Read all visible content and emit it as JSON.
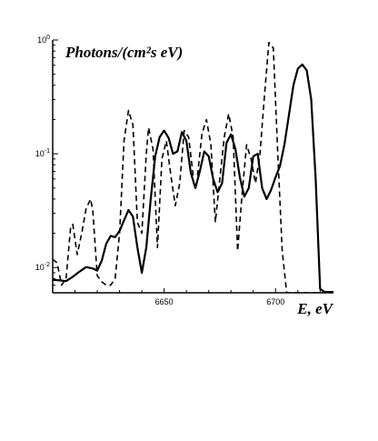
{
  "chart_data": {
    "type": "line",
    "title": "",
    "ylabel": "Photons/(cm²s eV)",
    "xlabel": "E, eV",
    "xlim": [
      6600,
      6726
    ],
    "ylim": [
      0.006,
      1.0
    ],
    "yscale": "log",
    "grid": false,
    "x_ticks": [
      {
        "value": 6650,
        "label": "6650"
      },
      {
        "value": 6700,
        "label": "6700"
      }
    ],
    "y_ticks": [
      {
        "value": 1.0,
        "base": "10",
        "exp": "0"
      },
      {
        "value": 0.1,
        "base": "10",
        "exp": "-1"
      },
      {
        "value": 0.01,
        "base": "10",
        "exp": "-2"
      }
    ],
    "series": [
      {
        "style": "solid",
        "color": "#000000",
        "points": [
          [
            6600,
            0.0078
          ],
          [
            6603,
            0.0077
          ],
          [
            6606,
            0.0076
          ],
          [
            6609,
            0.0083
          ],
          [
            6612,
            0.0092
          ],
          [
            6615,
            0.0101
          ],
          [
            6618,
            0.0098
          ],
          [
            6620,
            0.0094
          ],
          [
            6622,
            0.0115
          ],
          [
            6624,
            0.0162
          ],
          [
            6626,
            0.019
          ],
          [
            6628,
            0.0185
          ],
          [
            6630,
            0.021
          ],
          [
            6632,
            0.026
          ],
          [
            6634,
            0.032
          ],
          [
            6636,
            0.028
          ],
          [
            6638,
            0.015
          ],
          [
            6640,
            0.009
          ],
          [
            6642,
            0.015
          ],
          [
            6644,
            0.04
          ],
          [
            6646,
            0.095
          ],
          [
            6648,
            0.14
          ],
          [
            6650,
            0.16
          ],
          [
            6652,
            0.138
          ],
          [
            6654,
            0.1
          ],
          [
            6656,
            0.105
          ],
          [
            6658,
            0.155
          ],
          [
            6660,
            0.13
          ],
          [
            6662,
            0.068
          ],
          [
            6664,
            0.05
          ],
          [
            6666,
            0.07
          ],
          [
            6668,
            0.105
          ],
          [
            6670,
            0.095
          ],
          [
            6672,
            0.06
          ],
          [
            6674,
            0.046
          ],
          [
            6676,
            0.055
          ],
          [
            6678,
            0.125
          ],
          [
            6680,
            0.148
          ],
          [
            6682,
            0.11
          ],
          [
            6684,
            0.062
          ],
          [
            6686,
            0.042
          ],
          [
            6688,
            0.05
          ],
          [
            6690,
            0.095
          ],
          [
            6692,
            0.1
          ],
          [
            6694,
            0.05
          ],
          [
            6696,
            0.04
          ],
          [
            6698,
            0.048
          ],
          [
            6700,
            0.062
          ],
          [
            6702,
            0.078
          ],
          [
            6704,
            0.12
          ],
          [
            6706,
            0.22
          ],
          [
            6708,
            0.4
          ],
          [
            6710,
            0.56
          ],
          [
            6712,
            0.61
          ],
          [
            6714,
            0.54
          ],
          [
            6716,
            0.3
          ],
          [
            6718,
            0.06
          ],
          [
            6720,
            0.0065
          ],
          [
            6722,
            0.0061
          ],
          [
            6726,
            0.0061
          ]
        ]
      },
      {
        "style": "dashed",
        "color": "#000000",
        "points": [
          [
            6600,
            0.0118
          ],
          [
            6602,
            0.011
          ],
          [
            6604,
            0.007
          ],
          [
            6606,
            0.008
          ],
          [
            6608,
            0.022
          ],
          [
            6609,
            0.024
          ],
          [
            6611,
            0.013
          ],
          [
            6613,
            0.02
          ],
          [
            6615,
            0.033
          ],
          [
            6617,
            0.04
          ],
          [
            6618,
            0.032
          ],
          [
            6620,
            0.0085
          ],
          [
            6622,
            0.0075
          ],
          [
            6624,
            0.007
          ],
          [
            6626,
            0.007
          ],
          [
            6628,
            0.008
          ],
          [
            6630,
            0.02
          ],
          [
            6632,
            0.13
          ],
          [
            6634,
            0.24
          ],
          [
            6636,
            0.18
          ],
          [
            6638,
            0.025
          ],
          [
            6640,
            0.02
          ],
          [
            6642,
            0.1
          ],
          [
            6643,
            0.17
          ],
          [
            6645,
            0.11
          ],
          [
            6647,
            0.015
          ],
          [
            6649,
            0.09
          ],
          [
            6651,
            0.13
          ],
          [
            6653,
            0.065
          ],
          [
            6655,
            0.035
          ],
          [
            6657,
            0.055
          ],
          [
            6659,
            0.16
          ],
          [
            6661,
            0.14
          ],
          [
            6663,
            0.065
          ],
          [
            6665,
            0.065
          ],
          [
            6667,
            0.15
          ],
          [
            6669,
            0.2
          ],
          [
            6671,
            0.12
          ],
          [
            6673,
            0.025
          ],
          [
            6675,
            0.06
          ],
          [
            6677,
            0.14
          ],
          [
            6679,
            0.225
          ],
          [
            6681,
            0.14
          ],
          [
            6683,
            0.014
          ],
          [
            6685,
            0.045
          ],
          [
            6687,
            0.12
          ],
          [
            6689,
            0.09
          ],
          [
            6691,
            0.055
          ],
          [
            6693,
            0.1
          ],
          [
            6695,
            0.32
          ],
          [
            6697,
            0.95
          ],
          [
            6699,
            0.85
          ],
          [
            6701,
            0.1
          ],
          [
            6703,
            0.014
          ],
          [
            6705,
            0.006
          ],
          [
            6708,
            0.006
          ],
          [
            6726,
            0.006
          ]
        ]
      }
    ]
  }
}
